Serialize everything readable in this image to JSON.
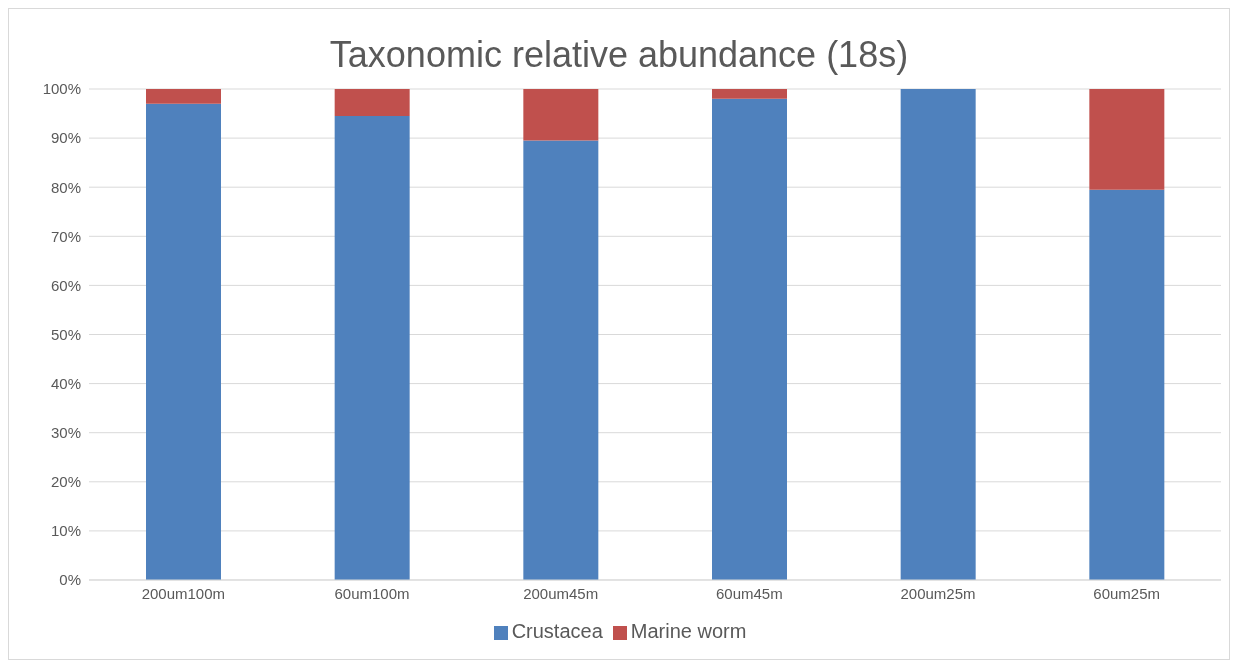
{
  "chart_data": {
    "type": "bar",
    "title": "Taxonomic relative abundance (18s)",
    "stacked": true,
    "categories": [
      "200um100m",
      "60um100m",
      "200um45m",
      "60um45m",
      "200um25m",
      "60um25m"
    ],
    "series": [
      {
        "name": "Crustacea",
        "color": "#4f81bd",
        "values": [
          97,
          94.5,
          89.5,
          98,
          100,
          79.5
        ]
      },
      {
        "name": "Marine worm",
        "color": "#c0504d",
        "values": [
          3,
          5.5,
          10.5,
          2,
          0,
          20.5
        ]
      }
    ],
    "ylim": [
      0,
      100
    ],
    "yticks": [
      {
        "value": 0,
        "label": "0%"
      },
      {
        "value": 10,
        "label": "10%"
      },
      {
        "value": 20,
        "label": "20%"
      },
      {
        "value": 30,
        "label": "30%"
      },
      {
        "value": 40,
        "label": "40%"
      },
      {
        "value": 50,
        "label": "50%"
      },
      {
        "value": 60,
        "label": "60%"
      },
      {
        "value": 70,
        "label": "70%"
      },
      {
        "value": 80,
        "label": "80%"
      },
      {
        "value": 90,
        "label": "90%"
      },
      {
        "value": 100,
        "label": "100%"
      }
    ],
    "grid": "y",
    "legend": "bottom"
  }
}
